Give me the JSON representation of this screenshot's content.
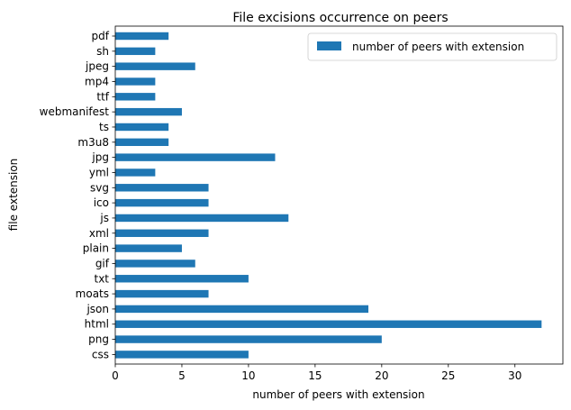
{
  "chart_data": {
    "type": "bar",
    "orientation": "horizontal",
    "title": "File excisions occurrence on peers",
    "xlabel": "number of peers with extension",
    "ylabel": "file extension",
    "categories": [
      "css",
      "png",
      "html",
      "json",
      "moats",
      "txt",
      "gif",
      "plain",
      "xml",
      "js",
      "ico",
      "svg",
      "yml",
      "jpg",
      "m3u8",
      "ts",
      "webmanifest",
      "ttf",
      "mp4",
      "jpeg",
      "sh",
      "pdf"
    ],
    "series": [
      {
        "name": "number of peers with extension",
        "color": "#1f77b4",
        "values": [
          10,
          20,
          32,
          19,
          7,
          10,
          6,
          5,
          7,
          13,
          7,
          7,
          3,
          12,
          4,
          4,
          5,
          3,
          3,
          6,
          3,
          4
        ]
      }
    ],
    "xlim": [
      0,
      33.6
    ],
    "xticks": [
      0,
      5,
      10,
      15,
      20,
      25,
      30
    ],
    "grid": false,
    "legend_position": "top-right"
  }
}
